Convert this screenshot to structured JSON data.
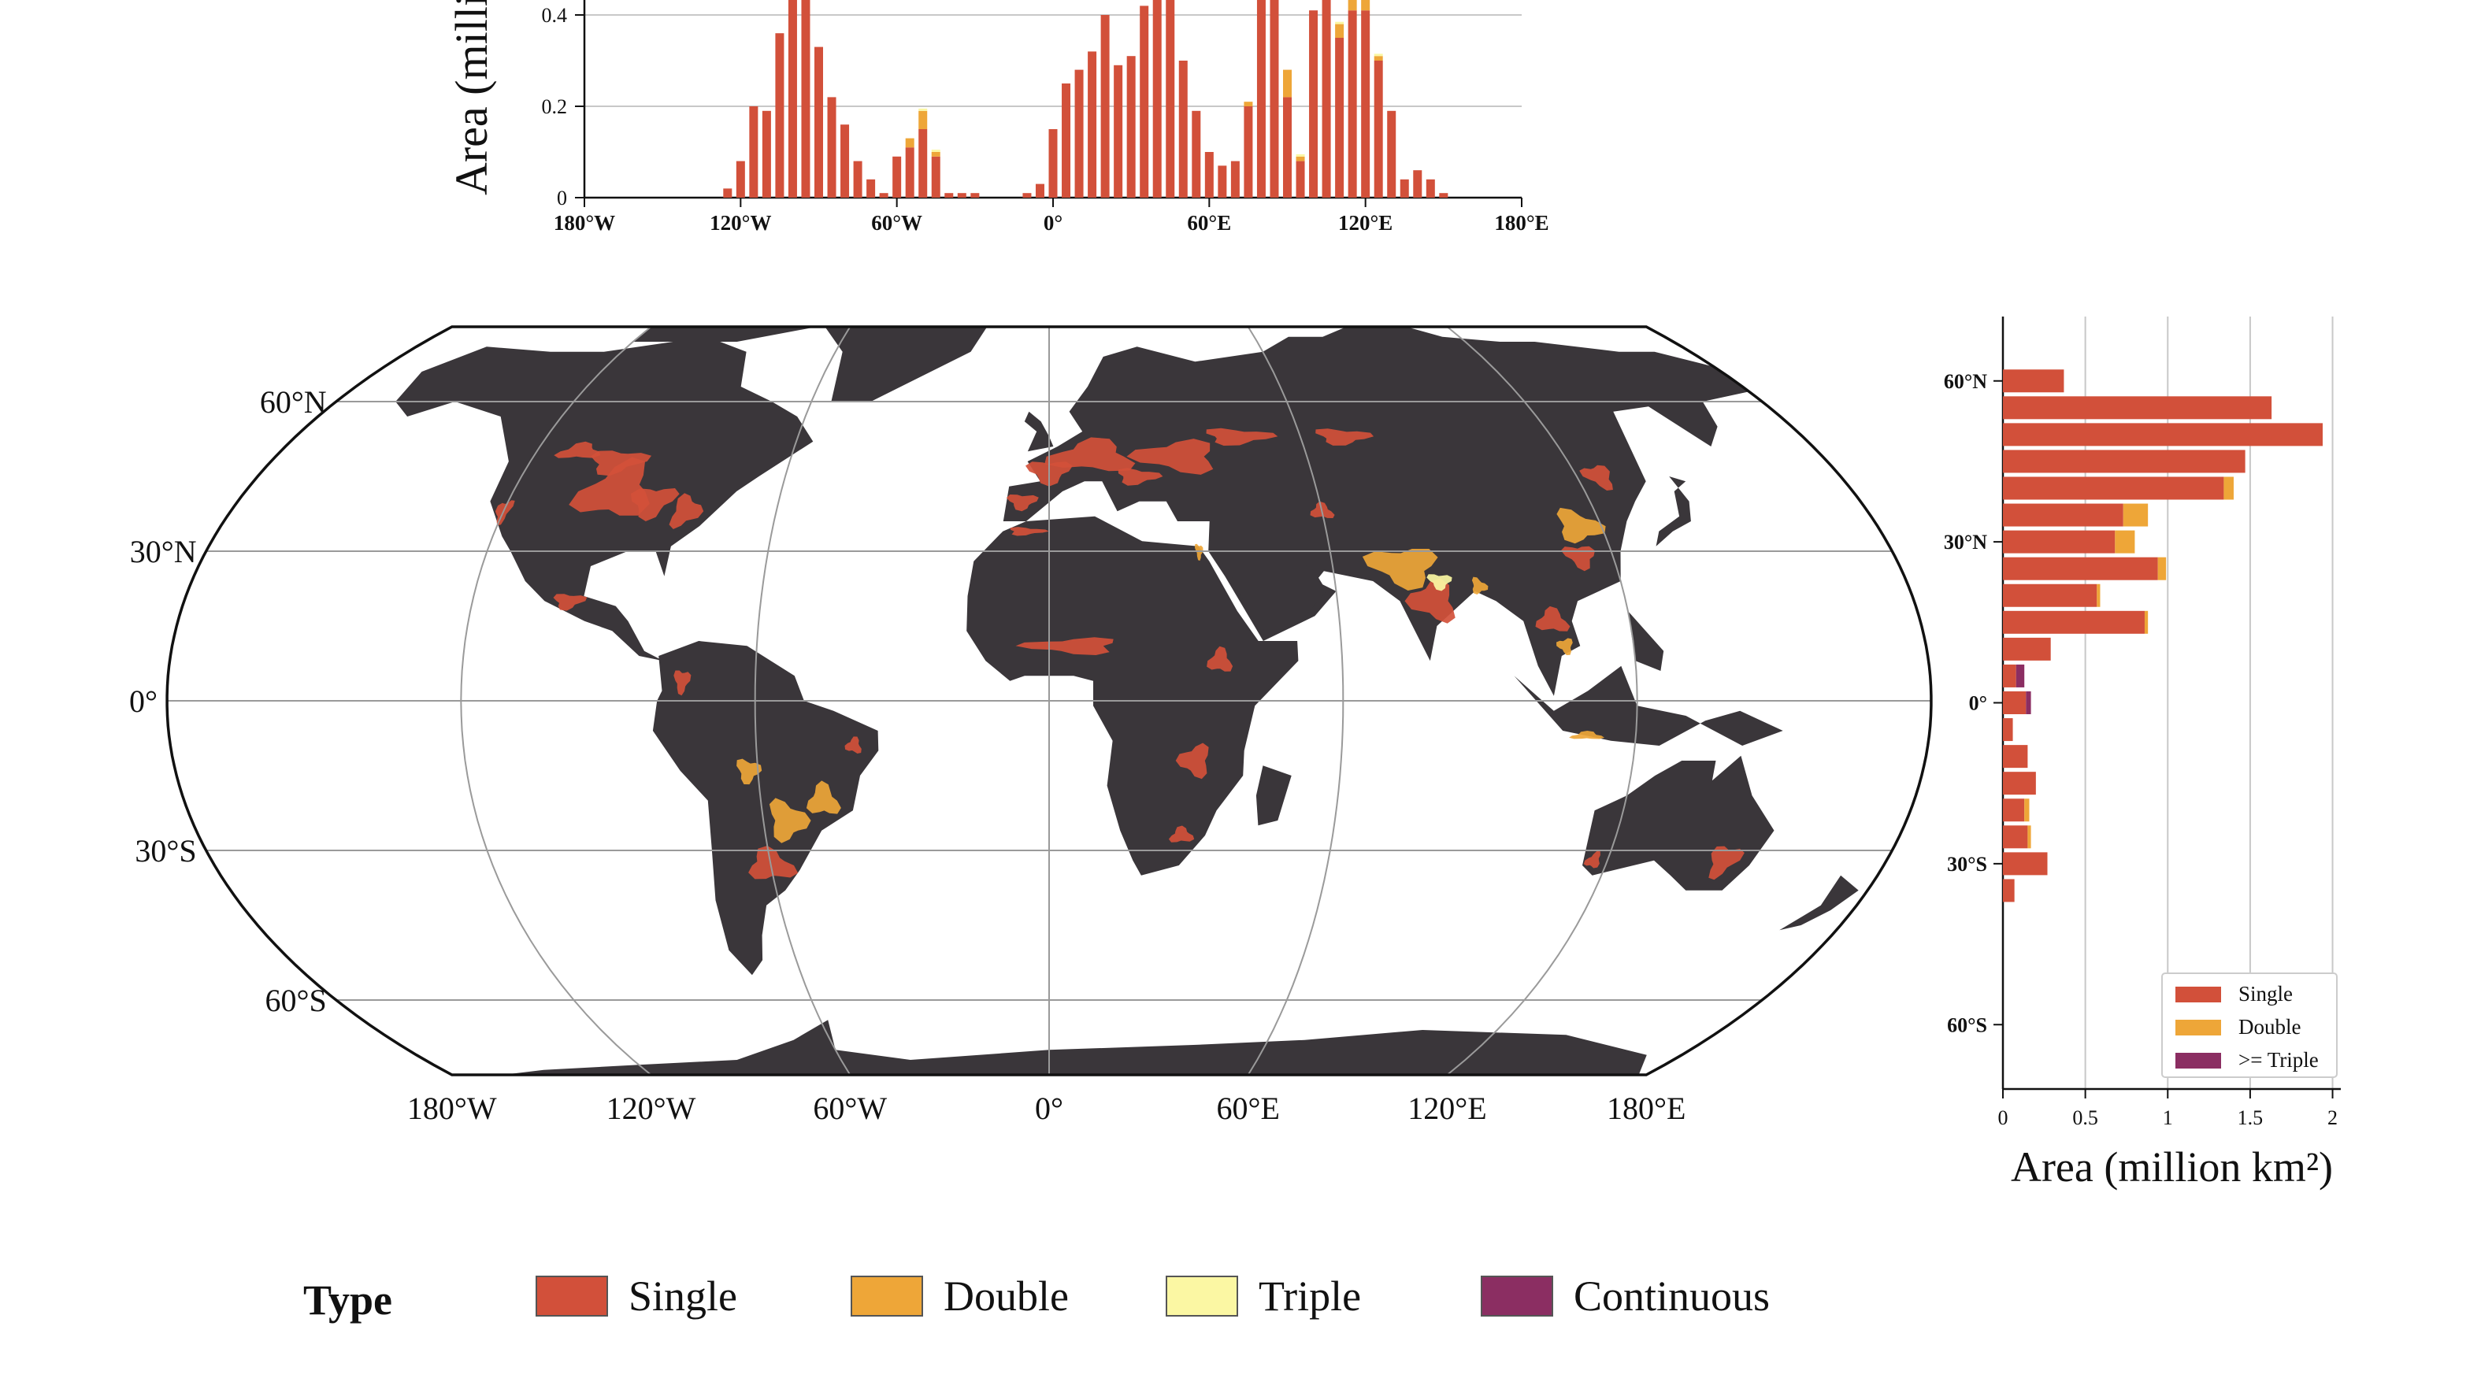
{
  "colors": {
    "single": "#d2503a",
    "double": "#eea638",
    "triple": "#fbf7a3",
    "continuous": "#8b2e62",
    "land": "#3a363a",
    "grid": "#9a9a9a"
  },
  "legend": {
    "title": "Type",
    "items": [
      {
        "label": "Single",
        "color": "#d2503a"
      },
      {
        "label": "Double",
        "color": "#eea638"
      },
      {
        "label": "Triple",
        "color": "#fbf7a3"
      },
      {
        "label": "Continuous",
        "color": "#8b2e62"
      }
    ]
  },
  "map": {
    "lat_labels": [
      "60°N",
      "30°N",
      "0°",
      "30°S",
      "60°S"
    ],
    "lon_labels": [
      "180°W",
      "120°W",
      "60°W",
      "0°",
      "60°E",
      "120°E",
      "180°E"
    ]
  },
  "chart_data": [
    {
      "type": "bar",
      "stacked": true,
      "orientation": "vertical",
      "ylabel": "Area (milli",
      "x_tick_labels": [
        "180°W",
        "120°W",
        "60°W",
        "0°",
        "60°E",
        "120°E",
        "180°E"
      ],
      "y_tick_labels": [
        "0",
        "0.2",
        "0.4"
      ],
      "ylim": [
        0,
        0.45
      ],
      "xlim": [
        -180,
        180
      ],
      "grid": true,
      "x": [
        -125,
        -120,
        -115,
        -110,
        -105,
        -100,
        -95,
        -90,
        -85,
        -80,
        -75,
        -70,
        -65,
        -60,
        -55,
        -50,
        -45,
        -40,
        -35,
        -30,
        -10,
        -5,
        0,
        5,
        10,
        15,
        20,
        25,
        30,
        35,
        40,
        45,
        50,
        55,
        60,
        65,
        70,
        75,
        80,
        85,
        90,
        95,
        100,
        105,
        110,
        115,
        120,
        125,
        130,
        135,
        140,
        145,
        150
      ],
      "series": [
        {
          "name": "Single",
          "values": [
            0.02,
            0.08,
            0.2,
            0.19,
            0.36,
            0.44,
            0.45,
            0.33,
            0.22,
            0.16,
            0.08,
            0.04,
            0.01,
            0.09,
            0.11,
            0.15,
            0.09,
            0.01,
            0.01,
            0.01,
            0.01,
            0.03,
            0.15,
            0.25,
            0.28,
            0.32,
            0.4,
            0.29,
            0.31,
            0.42,
            0.45,
            0.45,
            0.3,
            0.19,
            0.1,
            0.07,
            0.08,
            0.2,
            0.45,
            0.45,
            0.22,
            0.08,
            0.41,
            0.45,
            0.35,
            0.41,
            0.41,
            0.3,
            0.19,
            0.04,
            0.06,
            0.04,
            0.01
          ]
        },
        {
          "name": "Double",
          "values": [
            0,
            0,
            0,
            0,
            0,
            0,
            0,
            0,
            0,
            0,
            0,
            0,
            0,
            0,
            0.02,
            0.04,
            0.01,
            0,
            0,
            0,
            0,
            0,
            0,
            0,
            0,
            0,
            0,
            0,
            0,
            0,
            0,
            0,
            0,
            0,
            0,
            0,
            0,
            0.01,
            0,
            0,
            0.06,
            0.01,
            0,
            0,
            0.03,
            0.04,
            0.04,
            0.01,
            0,
            0,
            0,
            0,
            0
          ]
        },
        {
          "name": "Triple",
          "values": [
            0,
            0,
            0,
            0,
            0,
            0,
            0,
            0,
            0,
            0,
            0,
            0,
            0,
            0,
            0,
            0.005,
            0.005,
            0,
            0,
            0,
            0,
            0,
            0,
            0,
            0,
            0,
            0,
            0,
            0,
            0,
            0,
            0,
            0,
            0,
            0,
            0,
            0,
            0,
            0,
            0,
            0,
            0.005,
            0,
            0,
            0.005,
            0.005,
            0.005,
            0.005,
            0,
            0,
            0,
            0,
            0
          ]
        }
      ]
    },
    {
      "type": "bar",
      "stacked": true,
      "orientation": "horizontal",
      "xlabel": "Area (million km²)",
      "x_tick_labels": [
        "0",
        "0.5",
        "1",
        "1.5",
        "2"
      ],
      "y_tick_labels": [
        "60°N",
        "30°N",
        "0°",
        "30°S",
        "60°S"
      ],
      "xlim": [
        0,
        2.05
      ],
      "ylim": [
        -72,
        72
      ],
      "grid": true,
      "legend_position": "bottom-right",
      "lat": [
        60,
        55,
        50,
        45,
        40,
        35,
        30,
        25,
        20,
        15,
        10,
        5,
        0,
        -5,
        -10,
        -15,
        -20,
        -25,
        -30,
        -35
      ],
      "series": [
        {
          "name": "Single",
          "values": [
            0.37,
            1.63,
            1.94,
            1.47,
            1.34,
            0.73,
            0.68,
            0.94,
            0.57,
            0.86,
            0.29,
            0.08,
            0.14,
            0.06,
            0.15,
            0.2,
            0.13,
            0.15,
            0.27,
            0.07
          ]
        },
        {
          "name": "Double",
          "values": [
            0,
            0,
            0,
            0,
            0.06,
            0.15,
            0.12,
            0.05,
            0.02,
            0.02,
            0,
            0,
            0,
            0,
            0,
            0,
            0.03,
            0.02,
            0,
            0
          ]
        },
        {
          "name": ">= Triple",
          "values": [
            0,
            0,
            0,
            0,
            0,
            0,
            0,
            0,
            0,
            0,
            0,
            0.05,
            0.03,
            0,
            0,
            0,
            0,
            0,
            0,
            0
          ]
        }
      ]
    }
  ]
}
